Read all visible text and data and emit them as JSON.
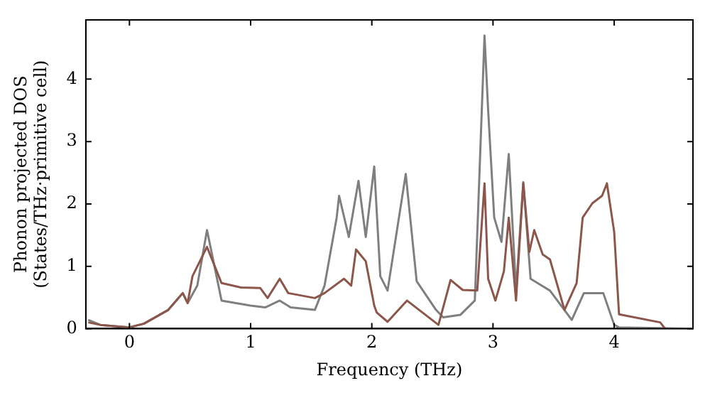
{
  "chart_data": {
    "type": "line",
    "xlabel": "Frequency (THz)",
    "ylabel": "Phonon projected DOS\n(States/THz·primitive cell)",
    "xlim": [
      -0.36,
      4.65
    ],
    "ylim": [
      0,
      4.95
    ],
    "xticks": [
      0,
      1,
      2,
      3,
      4
    ],
    "yticks": [
      0,
      1,
      2,
      3,
      4
    ],
    "grid": false,
    "legend": false,
    "marker": "none",
    "line_style": "solid",
    "series": [
      {
        "color": "#8c564b",
        "x": [
          -0.34,
          -0.24,
          0,
          0.12,
          0.32,
          0.44,
          0.48,
          0.52,
          0.64,
          0.76,
          0.92,
          1.08,
          1.14,
          1.24,
          1.31,
          1.53,
          1.61,
          1.77,
          1.83,
          1.87,
          1.95,
          2.02,
          2.04,
          2.13,
          2.29,
          2.55,
          2.65,
          2.75,
          2.87,
          2.93,
          2.96,
          3.02,
          3.09,
          3.13,
          3.19,
          3.25,
          3.3,
          3.34,
          3.41,
          3.47,
          3.59,
          3.69,
          3.74,
          3.82,
          3.9,
          3.94,
          4.0,
          4.04,
          4.38,
          4.42
        ],
        "values": [
          0.1,
          0.06,
          0.02,
          0.08,
          0.3,
          0.57,
          0.41,
          0.84,
          1.31,
          0.73,
          0.66,
          0.65,
          0.49,
          0.8,
          0.57,
          0.49,
          0.57,
          0.8,
          0.69,
          1.27,
          1.08,
          0.37,
          0.26,
          0.11,
          0.45,
          0.06,
          0.78,
          0.62,
          0.61,
          2.33,
          0.8,
          0.45,
          0.92,
          1.78,
          0.45,
          2.33,
          1.23,
          1.58,
          1.19,
          1.11,
          0.3,
          0.73,
          1.78,
          2.01,
          2.13,
          2.33,
          1.55,
          0.23,
          0.1,
          0
        ]
      },
      {
        "color": "#7f7f7f",
        "x": [
          -0.34,
          -0.24,
          0,
          0.12,
          0.32,
          0.44,
          0.48,
          0.56,
          0.64,
          0.76,
          1.0,
          1.12,
          1.24,
          1.33,
          1.53,
          1.61,
          1.71,
          1.73,
          1.81,
          1.89,
          1.95,
          2.02,
          2.07,
          2.13,
          2.28,
          2.37,
          2.53,
          2.59,
          2.73,
          2.85,
          2.93,
          2.96,
          3.01,
          3.07,
          3.13,
          3.19,
          3.25,
          3.31,
          3.47,
          3.65,
          3.75,
          3.91,
          4.0,
          4.04,
          4.65
        ],
        "values": [
          0.14,
          0.06,
          0.02,
          0.08,
          0.3,
          0.57,
          0.41,
          0.69,
          1.58,
          0.45,
          0.37,
          0.34,
          0.45,
          0.34,
          0.3,
          0.69,
          1.78,
          2.13,
          1.47,
          2.37,
          1.47,
          2.6,
          0.84,
          0.61,
          2.48,
          0.76,
          0.3,
          0.18,
          0.22,
          0.45,
          4.7,
          3.5,
          1.78,
          1.39,
          2.8,
          0.61,
          2.35,
          0.8,
          0.61,
          0.14,
          0.57,
          0.57,
          0.06,
          0.02,
          0
        ]
      }
    ]
  }
}
